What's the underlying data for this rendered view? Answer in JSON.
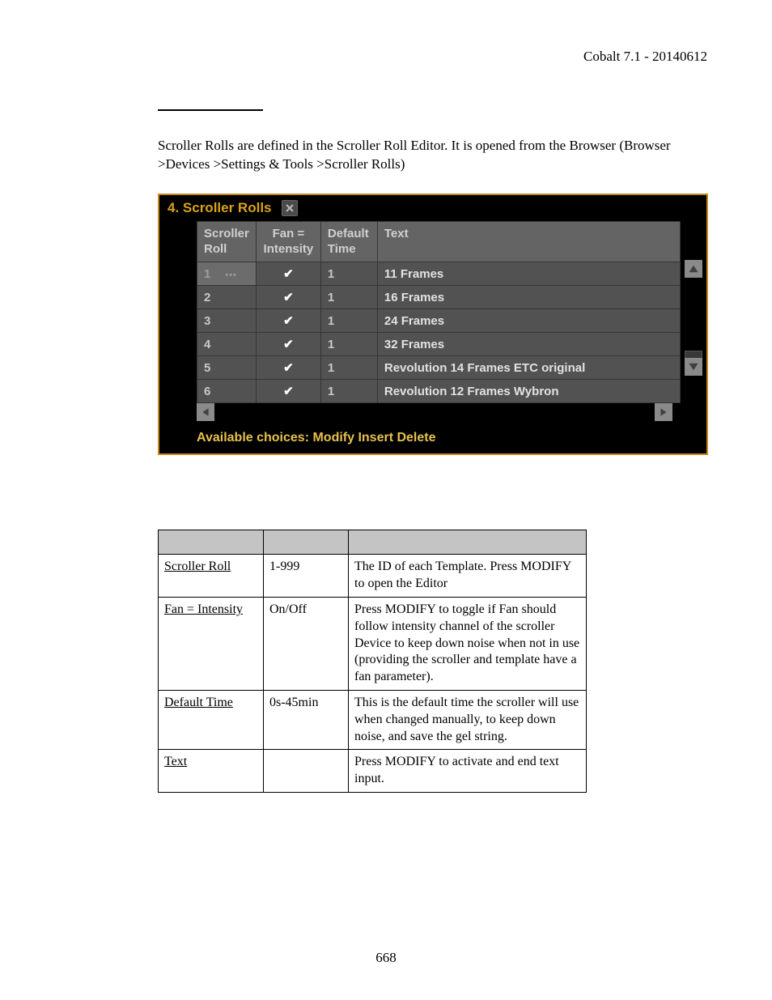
{
  "header": {
    "doc_version": "Cobalt 7.1 - 20140612"
  },
  "intro": "Scroller Rolls are defined in the Scroller Roll Editor. It is opened from the Browser (Browser >Devices >Settings & Tools >Scroller Rolls)",
  "ui": {
    "title": "4. Scroller Rolls",
    "columns": {
      "roll": "Scroller Roll",
      "fan": "Fan = Intensity",
      "time": "Default Time",
      "text": "Text"
    },
    "rows": [
      {
        "roll": "1",
        "fan": "✔",
        "time": "1",
        "text": "11 Frames",
        "selected": true
      },
      {
        "roll": "2",
        "fan": "✔",
        "time": "1",
        "text": "16 Frames"
      },
      {
        "roll": "3",
        "fan": "✔",
        "time": "1",
        "text": "24 Frames"
      },
      {
        "roll": "4",
        "fan": "✔",
        "time": "1",
        "text": "32 Frames"
      },
      {
        "roll": "5",
        "fan": "✔",
        "time": "1",
        "text": "Revolution 14 Frames ETC original"
      },
      {
        "roll": "6",
        "fan": "✔",
        "time": "1",
        "text": "Revolution 12 Frames Wybron"
      }
    ],
    "choices": "Available choices: Modify Insert Delete"
  },
  "ref": {
    "rows": [
      {
        "label": "Scroller Roll",
        "range": "1-999",
        "desc": "The ID of each Template. Press MODIFY to open the Editor"
      },
      {
        "label": "Fan = Intensity",
        "range": "On/Off",
        "desc": "Press MODIFY to toggle if Fan should follow intensity channel of the scroller Device to keep down noise when not in use (providing the scroller and template have a fan parameter)."
      },
      {
        "label": "Default Time",
        "range": "0s-45min",
        "desc": "This is the default time                      the scroller will use when changed manually, to keep down noise, and save the gel string."
      },
      {
        "label": "Text",
        "range": "",
        "desc": "Press MODIFY to activate and end text input."
      }
    ]
  },
  "page_number": "668"
}
